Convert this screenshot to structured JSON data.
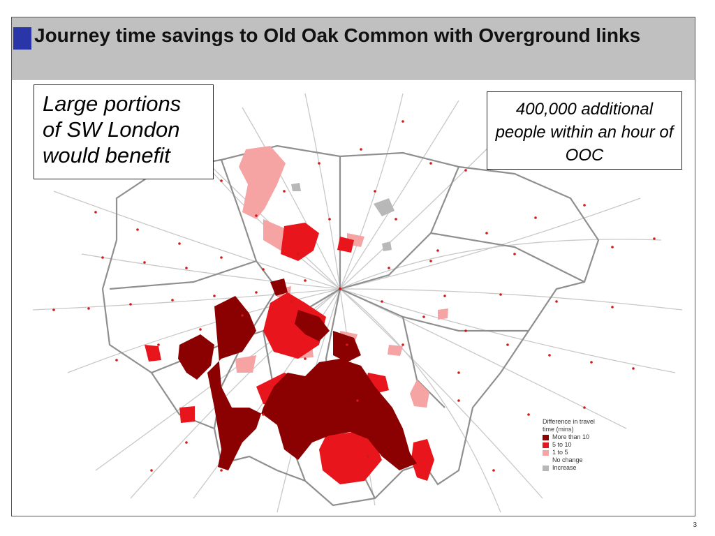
{
  "slide": {
    "title": "Journey time savings to Old Oak Common with Overground links",
    "callout_left": "Large portions of SW London would benefit",
    "callout_right": "400,000 additional people within an hour of OOC",
    "page_number": "3"
  },
  "legend": {
    "title": "Difference in travel time (mins)",
    "items": [
      {
        "label": "More than 10",
        "color": "#8b0000"
      },
      {
        "label": "5 to 10",
        "color": "#e8151c"
      },
      {
        "label": "1 to  5",
        "color": "#f5a3a3"
      },
      {
        "label": "No change",
        "color": ""
      },
      {
        "label": "Increase",
        "color": "#b8b8b8"
      }
    ]
  },
  "colors": {
    "more_than_10": "#8b0000",
    "five_to_ten": "#e8151c",
    "one_to_five": "#f5a3a3",
    "increase": "#b8b8b8",
    "boundary": "#8f8f8f",
    "rail": "#c8c8c8",
    "station": "#d11919",
    "title_accent": "#2a35a8"
  }
}
